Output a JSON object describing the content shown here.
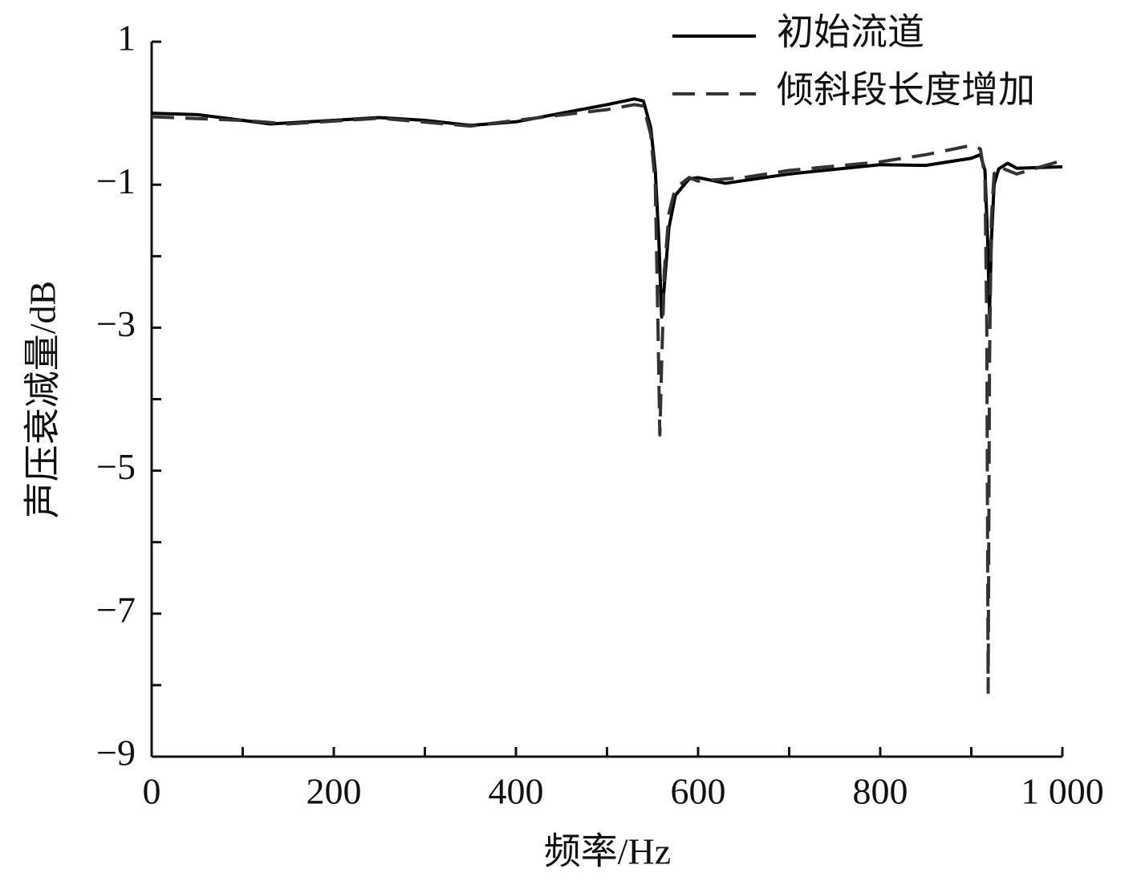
{
  "chart_data": {
    "type": "line",
    "xlabel": "频率/Hz",
    "ylabel": "声压衰减量/dB",
    "xlim": [
      0,
      1000
    ],
    "ylim": [
      -9,
      1
    ],
    "xticks": [
      0,
      200,
      400,
      600,
      800,
      {
        "value": 1000,
        "label": "1 000"
      }
    ],
    "xminor_ticks": [
      100,
      300,
      500,
      700,
      900
    ],
    "yticks": [
      1,
      {
        "value": -1,
        "label": "−1"
      },
      {
        "value": -3,
        "label": "−3"
      },
      {
        "value": -5,
        "label": "−5"
      },
      {
        "value": -7,
        "label": "−7"
      },
      {
        "value": -9,
        "label": "−9"
      }
    ],
    "yminor_ticks": [
      0,
      -2,
      -4,
      -6,
      -8
    ],
    "legend": "upper right",
    "series": [
      {
        "name": "初始流道",
        "color": "#000000",
        "dash": false,
        "x": [
          0,
          50,
          100,
          130,
          200,
          250,
          300,
          350,
          400,
          450,
          500,
          530,
          540,
          548,
          553,
          557,
          560,
          563,
          568,
          575,
          590,
          600,
          630,
          700,
          800,
          850,
          900,
          910,
          915,
          918,
          920,
          922,
          925,
          930,
          940,
          950,
          1000
        ],
        "values": [
          0.0,
          -0.02,
          -0.1,
          -0.15,
          -0.1,
          -0.06,
          -0.1,
          -0.17,
          -0.12,
          0.0,
          0.12,
          0.2,
          0.17,
          -0.2,
          -0.8,
          -1.8,
          -2.85,
          -2.4,
          -1.6,
          -1.15,
          -0.92,
          -0.9,
          -0.98,
          -0.85,
          -0.72,
          -0.73,
          -0.63,
          -0.58,
          -0.8,
          -1.8,
          -2.8,
          -1.8,
          -1.0,
          -0.78,
          -0.7,
          -0.77,
          -0.75
        ]
      },
      {
        "name": "倾斜段长度增加",
        "color": "#333333",
        "dash": true,
        "x": [
          0,
          100,
          150,
          250,
          350,
          400,
          500,
          530,
          540,
          548,
          553,
          556,
          558,
          560,
          563,
          568,
          575,
          590,
          600,
          650,
          700,
          800,
          850,
          900,
          910,
          915,
          917,
          918.5,
          920,
          922,
          925,
          930,
          940,
          950,
          1000
        ],
        "values": [
          -0.05,
          -0.1,
          -0.15,
          -0.07,
          -0.18,
          -0.1,
          0.05,
          0.12,
          0.1,
          -0.3,
          -1.0,
          -3.0,
          -4.5,
          -3.5,
          -2.2,
          -1.4,
          -1.05,
          -0.9,
          -0.95,
          -0.9,
          -0.8,
          -0.68,
          -0.58,
          -0.45,
          -0.5,
          -0.9,
          -3.0,
          -8.1,
          -3.5,
          -1.5,
          -0.85,
          -0.75,
          -0.8,
          -0.85,
          -0.66
        ]
      }
    ]
  }
}
